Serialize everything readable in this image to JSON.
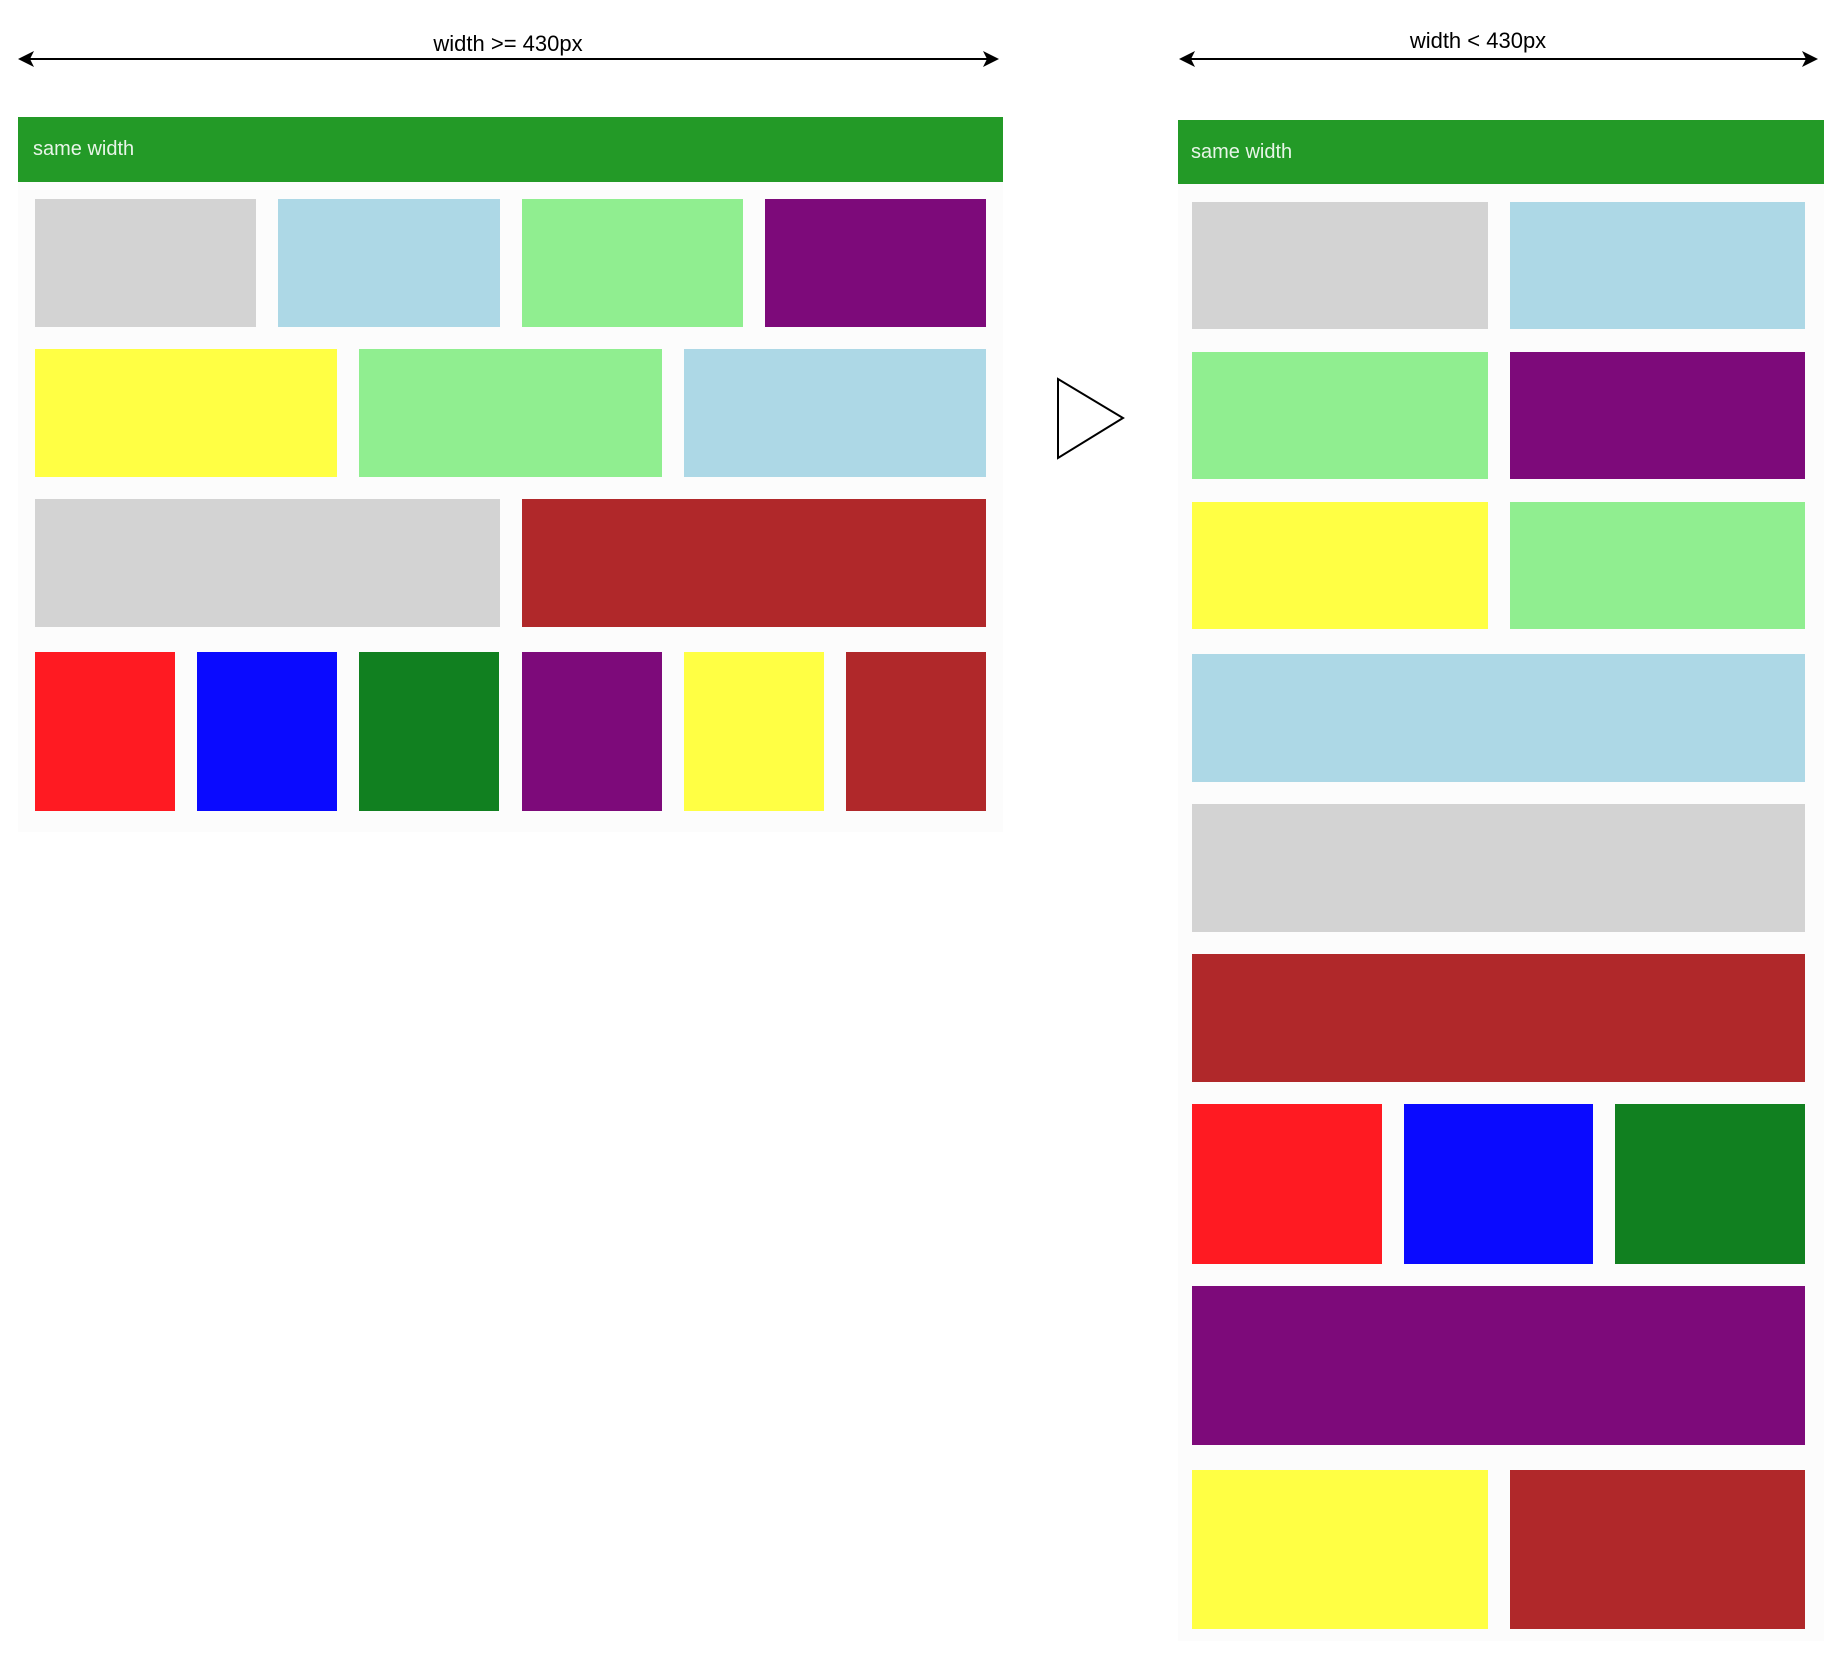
{
  "left": {
    "width_label": "width >= 430px",
    "header": "same width",
    "rows": [
      [
        "#d3d3d3",
        "#add8e6",
        "#90ee90",
        "#7d0a7a"
      ],
      [
        "#ffff44",
        "#90ee90",
        "#add8e6"
      ],
      [
        "#d3d3d3",
        "#b0282a"
      ],
      [
        "#ff1a22",
        "#0a0aff",
        "#118020",
        "#7d0a7a",
        "#ffff44",
        "#b0282a"
      ]
    ]
  },
  "right": {
    "width_label": "width < 430px",
    "header": "same width",
    "rows": [
      [
        "#d3d3d3",
        "#add8e6"
      ],
      [
        "#90ee90",
        "#7d0a7a"
      ],
      [
        "#ffff44",
        "#90ee90"
      ],
      [
        "#add8e6"
      ],
      [
        "#d3d3d3"
      ],
      [
        "#b0282a"
      ],
      [
        "#ff1a22",
        "#0a0aff",
        "#118020"
      ],
      [
        "#7d0a7a"
      ],
      [
        "#ffff44",
        "#b0282a"
      ]
    ]
  },
  "colors": {
    "header": "#239a27"
  }
}
